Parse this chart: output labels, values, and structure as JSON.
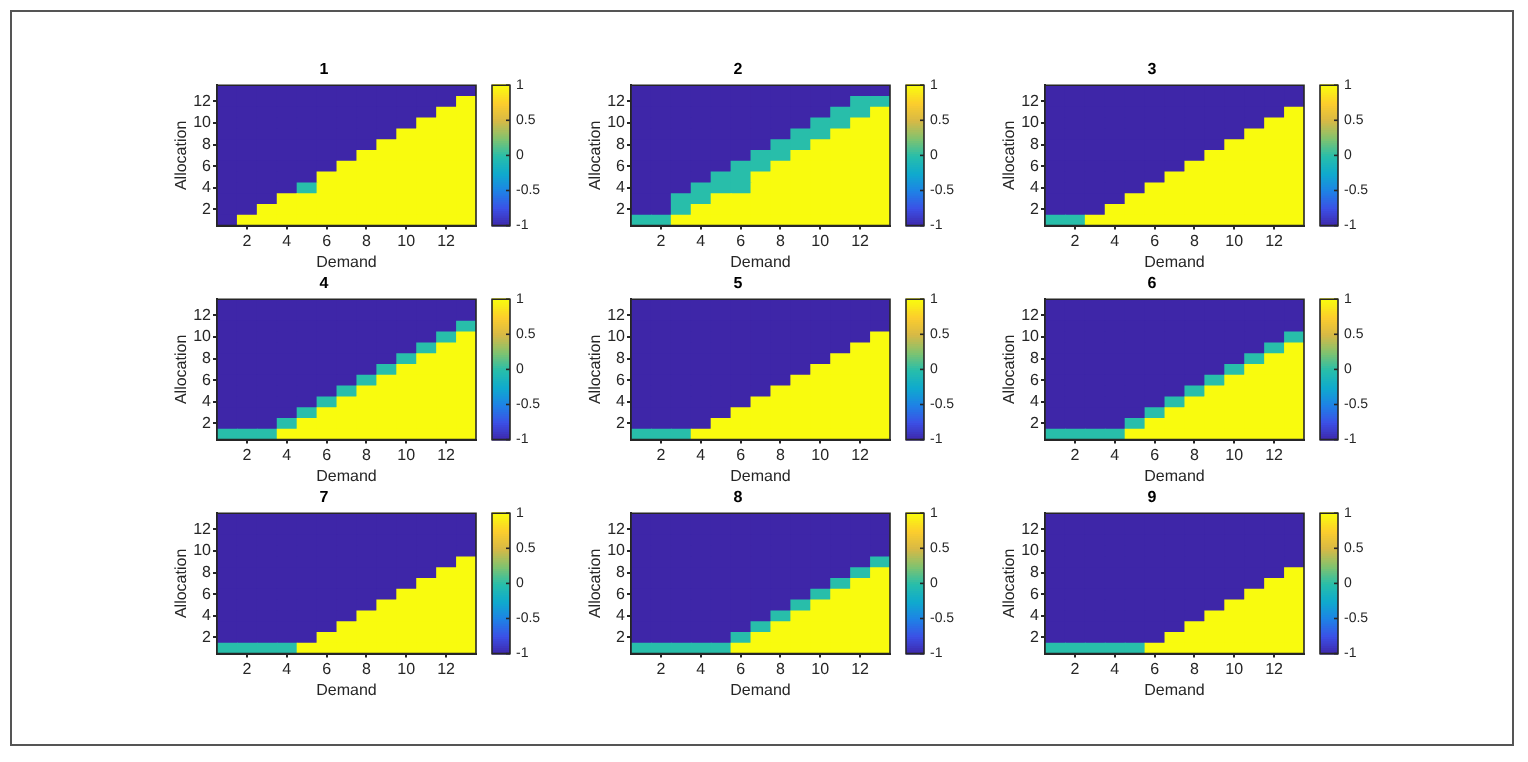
{
  "chart_data": [
    {
      "type": "heatmap",
      "title": "1",
      "xlabel": "Demand",
      "ylabel": "Allocation",
      "categories": [
        null,
        "2",
        null,
        "4",
        null,
        "6",
        null,
        "8",
        null,
        "10",
        null,
        "12",
        null
      ],
      "y_categories": [
        null,
        "12",
        null,
        "10",
        null,
        "8",
        null,
        "6",
        null,
        "4",
        null,
        "2",
        null
      ],
      "clim": [
        -1,
        1
      ],
      "cticks": [
        -1,
        -0.5,
        0,
        0.5,
        1
      ],
      "cells": [
        [
          -1,
          -1,
          -1,
          -1,
          -1,
          -1,
          -1,
          -1,
          -1,
          -1,
          -1,
          -1,
          -1
        ],
        [
          -1,
          -1,
          -1,
          -1,
          -1,
          -1,
          -1,
          -1,
          -1,
          -1,
          -1,
          -1,
          1
        ],
        [
          -1,
          -1,
          -1,
          -1,
          -1,
          -1,
          -1,
          -1,
          -1,
          -1,
          -1,
          1,
          1
        ],
        [
          -1,
          -1,
          -1,
          -1,
          -1,
          -1,
          -1,
          -1,
          -1,
          -1,
          1,
          1,
          1
        ],
        [
          -1,
          -1,
          -1,
          -1,
          -1,
          -1,
          -1,
          -1,
          -1,
          1,
          1,
          1,
          1
        ],
        [
          -1,
          -1,
          -1,
          -1,
          -1,
          -1,
          -1,
          -1,
          1,
          1,
          1,
          1,
          1
        ],
        [
          -1,
          -1,
          -1,
          -1,
          -1,
          -1,
          -1,
          1,
          1,
          1,
          1,
          1,
          1
        ],
        [
          -1,
          -1,
          -1,
          -1,
          -1,
          -1,
          1,
          1,
          1,
          1,
          1,
          1,
          1
        ],
        [
          -1,
          -1,
          -1,
          -1,
          -1,
          1,
          1,
          1,
          1,
          1,
          1,
          1,
          1
        ],
        [
          -1,
          -1,
          -1,
          -1,
          0,
          1,
          1,
          1,
          1,
          1,
          1,
          1,
          1
        ],
        [
          -1,
          -1,
          -1,
          1,
          1,
          1,
          1,
          1,
          1,
          1,
          1,
          1,
          1
        ],
        [
          -1,
          -1,
          1,
          1,
          1,
          1,
          1,
          1,
          1,
          1,
          1,
          1,
          1
        ],
        [
          -1,
          1,
          1,
          1,
          1,
          1,
          1,
          1,
          1,
          1,
          1,
          1,
          1
        ]
      ]
    },
    {
      "type": "heatmap",
      "title": "2",
      "xlabel": "Demand",
      "ylabel": "Allocation",
      "categories": [
        null,
        "2",
        null,
        "4",
        null,
        "6",
        null,
        "8",
        null,
        "10",
        null,
        "12",
        null
      ],
      "y_categories": [
        null,
        "12",
        null,
        "10",
        null,
        "8",
        null,
        "6",
        null,
        "4",
        null,
        "2",
        null
      ],
      "clim": [
        -1,
        1
      ],
      "cticks": [
        -1,
        -0.5,
        0,
        0.5,
        1
      ],
      "cells": [
        [
          -1,
          -1,
          -1,
          -1,
          -1,
          -1,
          -1,
          -1,
          -1,
          -1,
          -1,
          -1,
          -1
        ],
        [
          -1,
          -1,
          -1,
          -1,
          -1,
          -1,
          -1,
          -1,
          -1,
          -1,
          -1,
          0,
          0
        ],
        [
          -1,
          -1,
          -1,
          -1,
          -1,
          -1,
          -1,
          -1,
          -1,
          -1,
          0,
          0,
          1
        ],
        [
          -1,
          -1,
          -1,
          -1,
          -1,
          -1,
          -1,
          -1,
          -1,
          0,
          0,
          1,
          1
        ],
        [
          -1,
          -1,
          -1,
          -1,
          -1,
          -1,
          -1,
          -1,
          0,
          0,
          1,
          1,
          1
        ],
        [
          -1,
          -1,
          -1,
          -1,
          -1,
          -1,
          -1,
          0,
          0,
          1,
          1,
          1,
          1
        ],
        [
          -1,
          -1,
          -1,
          -1,
          -1,
          -1,
          0,
          0,
          1,
          1,
          1,
          1,
          1
        ],
        [
          -1,
          -1,
          -1,
          -1,
          -1,
          0,
          0,
          1,
          1,
          1,
          1,
          1,
          1
        ],
        [
          -1,
          -1,
          -1,
          -1,
          0,
          0,
          1,
          1,
          1,
          1,
          1,
          1,
          1
        ],
        [
          -1,
          -1,
          -1,
          0,
          0,
          0,
          1,
          1,
          1,
          1,
          1,
          1,
          1
        ],
        [
          -1,
          -1,
          0,
          0,
          1,
          1,
          1,
          1,
          1,
          1,
          1,
          1,
          1
        ],
        [
          -1,
          -1,
          0,
          1,
          1,
          1,
          1,
          1,
          1,
          1,
          1,
          1,
          1
        ],
        [
          0,
          0,
          1,
          1,
          1,
          1,
          1,
          1,
          1,
          1,
          1,
          1,
          1
        ]
      ]
    },
    {
      "type": "heatmap",
      "title": "3",
      "xlabel": "Demand",
      "ylabel": "Allocation",
      "categories": [
        null,
        "2",
        null,
        "4",
        null,
        "6",
        null,
        "8",
        null,
        "10",
        null,
        "12",
        null
      ],
      "y_categories": [
        null,
        "12",
        null,
        "10",
        null,
        "8",
        null,
        "6",
        null,
        "4",
        null,
        "2",
        null
      ],
      "clim": [
        -1,
        1
      ],
      "cticks": [
        -1,
        -0.5,
        0,
        0.5,
        1
      ],
      "cells": [
        [
          -1,
          -1,
          -1,
          -1,
          -1,
          -1,
          -1,
          -1,
          -1,
          -1,
          -1,
          -1,
          -1
        ],
        [
          -1,
          -1,
          -1,
          -1,
          -1,
          -1,
          -1,
          -1,
          -1,
          -1,
          -1,
          -1,
          -1
        ],
        [
          -1,
          -1,
          -1,
          -1,
          -1,
          -1,
          -1,
          -1,
          -1,
          -1,
          -1,
          -1,
          1
        ],
        [
          -1,
          -1,
          -1,
          -1,
          -1,
          -1,
          -1,
          -1,
          -1,
          -1,
          -1,
          1,
          1
        ],
        [
          -1,
          -1,
          -1,
          -1,
          -1,
          -1,
          -1,
          -1,
          -1,
          -1,
          1,
          1,
          1
        ],
        [
          -1,
          -1,
          -1,
          -1,
          -1,
          -1,
          -1,
          -1,
          -1,
          1,
          1,
          1,
          1
        ],
        [
          -1,
          -1,
          -1,
          -1,
          -1,
          -1,
          -1,
          -1,
          1,
          1,
          1,
          1,
          1
        ],
        [
          -1,
          -1,
          -1,
          -1,
          -1,
          -1,
          -1,
          1,
          1,
          1,
          1,
          1,
          1
        ],
        [
          -1,
          -1,
          -1,
          -1,
          -1,
          -1,
          1,
          1,
          1,
          1,
          1,
          1,
          1
        ],
        [
          -1,
          -1,
          -1,
          -1,
          -1,
          1,
          1,
          1,
          1,
          1,
          1,
          1,
          1
        ],
        [
          -1,
          -1,
          -1,
          -1,
          1,
          1,
          1,
          1,
          1,
          1,
          1,
          1,
          1
        ],
        [
          -1,
          -1,
          -1,
          1,
          1,
          1,
          1,
          1,
          1,
          1,
          1,
          1,
          1
        ],
        [
          0,
          0,
          1,
          1,
          1,
          1,
          1,
          1,
          1,
          1,
          1,
          1,
          1
        ]
      ]
    },
    {
      "type": "heatmap",
      "title": "4",
      "xlabel": "Demand",
      "ylabel": "Allocation",
      "categories": [
        null,
        "2",
        null,
        "4",
        null,
        "6",
        null,
        "8",
        null,
        "10",
        null,
        "12",
        null
      ],
      "y_categories": [
        null,
        "12",
        null,
        "10",
        null,
        "8",
        null,
        "6",
        null,
        "4",
        null,
        "2",
        null
      ],
      "clim": [
        -1,
        1
      ],
      "cticks": [
        -1,
        -0.5,
        0,
        0.5,
        1
      ],
      "cells": [
        [
          -1,
          -1,
          -1,
          -1,
          -1,
          -1,
          -1,
          -1,
          -1,
          -1,
          -1,
          -1,
          -1
        ],
        [
          -1,
          -1,
          -1,
          -1,
          -1,
          -1,
          -1,
          -1,
          -1,
          -1,
          -1,
          -1,
          -1
        ],
        [
          -1,
          -1,
          -1,
          -1,
          -1,
          -1,
          -1,
          -1,
          -1,
          -1,
          -1,
          -1,
          0
        ],
        [
          -1,
          -1,
          -1,
          -1,
          -1,
          -1,
          -1,
          -1,
          -1,
          -1,
          -1,
          0,
          1
        ],
        [
          -1,
          -1,
          -1,
          -1,
          -1,
          -1,
          -1,
          -1,
          -1,
          -1,
          0,
          1,
          1
        ],
        [
          -1,
          -1,
          -1,
          -1,
          -1,
          -1,
          -1,
          -1,
          -1,
          0,
          1,
          1,
          1
        ],
        [
          -1,
          -1,
          -1,
          -1,
          -1,
          -1,
          -1,
          -1,
          0,
          1,
          1,
          1,
          1
        ],
        [
          -1,
          -1,
          -1,
          -1,
          -1,
          -1,
          -1,
          0,
          1,
          1,
          1,
          1,
          1
        ],
        [
          -1,
          -1,
          -1,
          -1,
          -1,
          -1,
          0,
          1,
          1,
          1,
          1,
          1,
          1
        ],
        [
          -1,
          -1,
          -1,
          -1,
          -1,
          0,
          1,
          1,
          1,
          1,
          1,
          1,
          1
        ],
        [
          -1,
          -1,
          -1,
          -1,
          0,
          1,
          1,
          1,
          1,
          1,
          1,
          1,
          1
        ],
        [
          -1,
          -1,
          -1,
          0,
          1,
          1,
          1,
          1,
          1,
          1,
          1,
          1,
          1
        ],
        [
          0,
          0,
          0,
          1,
          1,
          1,
          1,
          1,
          1,
          1,
          1,
          1,
          1
        ]
      ]
    },
    {
      "type": "heatmap",
      "title": "5",
      "xlabel": "Demand",
      "ylabel": "Allocation",
      "categories": [
        null,
        "2",
        null,
        "4",
        null,
        "6",
        null,
        "8",
        null,
        "10",
        null,
        "12",
        null
      ],
      "y_categories": [
        null,
        "12",
        null,
        "10",
        null,
        "8",
        null,
        "6",
        null,
        "4",
        null,
        "2",
        null
      ],
      "clim": [
        -1,
        1
      ],
      "cticks": [
        -1,
        -0.5,
        0,
        0.5,
        1
      ],
      "cells": [
        [
          -1,
          -1,
          -1,
          -1,
          -1,
          -1,
          -1,
          -1,
          -1,
          -1,
          -1,
          -1,
          -1
        ],
        [
          -1,
          -1,
          -1,
          -1,
          -1,
          -1,
          -1,
          -1,
          -1,
          -1,
          -1,
          -1,
          -1
        ],
        [
          -1,
          -1,
          -1,
          -1,
          -1,
          -1,
          -1,
          -1,
          -1,
          -1,
          -1,
          -1,
          -1
        ],
        [
          -1,
          -1,
          -1,
          -1,
          -1,
          -1,
          -1,
          -1,
          -1,
          -1,
          -1,
          -1,
          1
        ],
        [
          -1,
          -1,
          -1,
          -1,
          -1,
          -1,
          -1,
          -1,
          -1,
          -1,
          -1,
          1,
          1
        ],
        [
          -1,
          -1,
          -1,
          -1,
          -1,
          -1,
          -1,
          -1,
          -1,
          -1,
          1,
          1,
          1
        ],
        [
          -1,
          -1,
          -1,
          -1,
          -1,
          -1,
          -1,
          -1,
          -1,
          1,
          1,
          1,
          1
        ],
        [
          -1,
          -1,
          -1,
          -1,
          -1,
          -1,
          -1,
          -1,
          1,
          1,
          1,
          1,
          1
        ],
        [
          -1,
          -1,
          -1,
          -1,
          -1,
          -1,
          -1,
          1,
          1,
          1,
          1,
          1,
          1
        ],
        [
          -1,
          -1,
          -1,
          -1,
          -1,
          -1,
          1,
          1,
          1,
          1,
          1,
          1,
          1
        ],
        [
          -1,
          -1,
          -1,
          -1,
          -1,
          1,
          1,
          1,
          1,
          1,
          1,
          1,
          1
        ],
        [
          -1,
          -1,
          -1,
          -1,
          1,
          1,
          1,
          1,
          1,
          1,
          1,
          1,
          1
        ],
        [
          0,
          0,
          0,
          1,
          1,
          1,
          1,
          1,
          1,
          1,
          1,
          1,
          1
        ]
      ]
    },
    {
      "type": "heatmap",
      "title": "6",
      "xlabel": "Demand",
      "ylabel": "Allocation",
      "categories": [
        null,
        "2",
        null,
        "4",
        null,
        "6",
        null,
        "8",
        null,
        "10",
        null,
        "12",
        null
      ],
      "y_categories": [
        null,
        "12",
        null,
        "10",
        null,
        "8",
        null,
        "6",
        null,
        "4",
        null,
        "2",
        null
      ],
      "clim": [
        -1,
        1
      ],
      "cticks": [
        -1,
        -0.5,
        0,
        0.5,
        1
      ],
      "cells": [
        [
          -1,
          -1,
          -1,
          -1,
          -1,
          -1,
          -1,
          -1,
          -1,
          -1,
          -1,
          -1,
          -1
        ],
        [
          -1,
          -1,
          -1,
          -1,
          -1,
          -1,
          -1,
          -1,
          -1,
          -1,
          -1,
          -1,
          -1
        ],
        [
          -1,
          -1,
          -1,
          -1,
          -1,
          -1,
          -1,
          -1,
          -1,
          -1,
          -1,
          -1,
          -1
        ],
        [
          -1,
          -1,
          -1,
          -1,
          -1,
          -1,
          -1,
          -1,
          -1,
          -1,
          -1,
          -1,
          0
        ],
        [
          -1,
          -1,
          -1,
          -1,
          -1,
          -1,
          -1,
          -1,
          -1,
          -1,
          -1,
          0,
          1
        ],
        [
          -1,
          -1,
          -1,
          -1,
          -1,
          -1,
          -1,
          -1,
          -1,
          -1,
          0,
          1,
          1
        ],
        [
          -1,
          -1,
          -1,
          -1,
          -1,
          -1,
          -1,
          -1,
          -1,
          0,
          1,
          1,
          1
        ],
        [
          -1,
          -1,
          -1,
          -1,
          -1,
          -1,
          -1,
          -1,
          0,
          1,
          1,
          1,
          1
        ],
        [
          -1,
          -1,
          -1,
          -1,
          -1,
          -1,
          -1,
          0,
          1,
          1,
          1,
          1,
          1
        ],
        [
          -1,
          -1,
          -1,
          -1,
          -1,
          -1,
          0,
          1,
          1,
          1,
          1,
          1,
          1
        ],
        [
          -1,
          -1,
          -1,
          -1,
          -1,
          0,
          1,
          1,
          1,
          1,
          1,
          1,
          1
        ],
        [
          -1,
          -1,
          -1,
          -1,
          0,
          1,
          1,
          1,
          1,
          1,
          1,
          1,
          1
        ],
        [
          0,
          0,
          0,
          0,
          1,
          1,
          1,
          1,
          1,
          1,
          1,
          1,
          1
        ]
      ]
    },
    {
      "type": "heatmap",
      "title": "7",
      "xlabel": "Demand",
      "ylabel": "Allocation",
      "categories": [
        null,
        "2",
        null,
        "4",
        null,
        "6",
        null,
        "8",
        null,
        "10",
        null,
        "12",
        null
      ],
      "y_categories": [
        null,
        "12",
        null,
        "10",
        null,
        "8",
        null,
        "6",
        null,
        "4",
        null,
        "2",
        null
      ],
      "clim": [
        -1,
        1
      ],
      "cticks": [
        -1,
        -0.5,
        0,
        0.5,
        1
      ],
      "cells": [
        [
          -1,
          -1,
          -1,
          -1,
          -1,
          -1,
          -1,
          -1,
          -1,
          -1,
          -1,
          -1,
          -1
        ],
        [
          -1,
          -1,
          -1,
          -1,
          -1,
          -1,
          -1,
          -1,
          -1,
          -1,
          -1,
          -1,
          -1
        ],
        [
          -1,
          -1,
          -1,
          -1,
          -1,
          -1,
          -1,
          -1,
          -1,
          -1,
          -1,
          -1,
          -1
        ],
        [
          -1,
          -1,
          -1,
          -1,
          -1,
          -1,
          -1,
          -1,
          -1,
          -1,
          -1,
          -1,
          -1
        ],
        [
          -1,
          -1,
          -1,
          -1,
          -1,
          -1,
          -1,
          -1,
          -1,
          -1,
          -1,
          -1,
          1
        ],
        [
          -1,
          -1,
          -1,
          -1,
          -1,
          -1,
          -1,
          -1,
          -1,
          -1,
          -1,
          1,
          1
        ],
        [
          -1,
          -1,
          -1,
          -1,
          -1,
          -1,
          -1,
          -1,
          -1,
          -1,
          1,
          1,
          1
        ],
        [
          -1,
          -1,
          -1,
          -1,
          -1,
          -1,
          -1,
          -1,
          -1,
          1,
          1,
          1,
          1
        ],
        [
          -1,
          -1,
          -1,
          -1,
          -1,
          -1,
          -1,
          -1,
          1,
          1,
          1,
          1,
          1
        ],
        [
          -1,
          -1,
          -1,
          -1,
          -1,
          -1,
          -1,
          1,
          1,
          1,
          1,
          1,
          1
        ],
        [
          -1,
          -1,
          -1,
          -1,
          -1,
          -1,
          1,
          1,
          1,
          1,
          1,
          1,
          1
        ],
        [
          -1,
          -1,
          -1,
          -1,
          -1,
          1,
          1,
          1,
          1,
          1,
          1,
          1,
          1
        ],
        [
          0,
          0,
          0,
          0,
          1,
          1,
          1,
          1,
          1,
          1,
          1,
          1,
          1
        ]
      ]
    },
    {
      "type": "heatmap",
      "title": "8",
      "xlabel": "Demand",
      "ylabel": "Allocation",
      "categories": [
        null,
        "2",
        null,
        "4",
        null,
        "6",
        null,
        "8",
        null,
        "10",
        null,
        "12",
        null
      ],
      "y_categories": [
        null,
        "12",
        null,
        "10",
        null,
        "8",
        null,
        "6",
        null,
        "4",
        null,
        "2",
        null
      ],
      "clim": [
        -1,
        1
      ],
      "cticks": [
        -1,
        -0.5,
        0,
        0.5,
        1
      ],
      "cells": [
        [
          -1,
          -1,
          -1,
          -1,
          -1,
          -1,
          -1,
          -1,
          -1,
          -1,
          -1,
          -1,
          -1
        ],
        [
          -1,
          -1,
          -1,
          -1,
          -1,
          -1,
          -1,
          -1,
          -1,
          -1,
          -1,
          -1,
          -1
        ],
        [
          -1,
          -1,
          -1,
          -1,
          -1,
          -1,
          -1,
          -1,
          -1,
          -1,
          -1,
          -1,
          -1
        ],
        [
          -1,
          -1,
          -1,
          -1,
          -1,
          -1,
          -1,
          -1,
          -1,
          -1,
          -1,
          -1,
          -1
        ],
        [
          -1,
          -1,
          -1,
          -1,
          -1,
          -1,
          -1,
          -1,
          -1,
          -1,
          -1,
          -1,
          0
        ],
        [
          -1,
          -1,
          -1,
          -1,
          -1,
          -1,
          -1,
          -1,
          -1,
          -1,
          -1,
          0,
          1
        ],
        [
          -1,
          -1,
          -1,
          -1,
          -1,
          -1,
          -1,
          -1,
          -1,
          -1,
          0,
          1,
          1
        ],
        [
          -1,
          -1,
          -1,
          -1,
          -1,
          -1,
          -1,
          -1,
          -1,
          0,
          1,
          1,
          1
        ],
        [
          -1,
          -1,
          -1,
          -1,
          -1,
          -1,
          -1,
          -1,
          0,
          1,
          1,
          1,
          1
        ],
        [
          -1,
          -1,
          -1,
          -1,
          -1,
          -1,
          -1,
          0,
          1,
          1,
          1,
          1,
          1
        ],
        [
          -1,
          -1,
          -1,
          -1,
          -1,
          -1,
          0,
          1,
          1,
          1,
          1,
          1,
          1
        ],
        [
          -1,
          -1,
          -1,
          -1,
          -1,
          0,
          1,
          1,
          1,
          1,
          1,
          1,
          1
        ],
        [
          0,
          0,
          0,
          0,
          0,
          1,
          1,
          1,
          1,
          1,
          1,
          1,
          1
        ]
      ]
    },
    {
      "type": "heatmap",
      "title": "9",
      "xlabel": "Demand",
      "ylabel": "Allocation",
      "categories": [
        null,
        "2",
        null,
        "4",
        null,
        "6",
        null,
        "8",
        null,
        "10",
        null,
        "12",
        null
      ],
      "y_categories": [
        null,
        "12",
        null,
        "10",
        null,
        "8",
        null,
        "6",
        null,
        "4",
        null,
        "2",
        null
      ],
      "clim": [
        -1,
        1
      ],
      "cticks": [
        -1,
        -0.5,
        0,
        0.5,
        1
      ],
      "cells": [
        [
          -1,
          -1,
          -1,
          -1,
          -1,
          -1,
          -1,
          -1,
          -1,
          -1,
          -1,
          -1,
          -1
        ],
        [
          -1,
          -1,
          -1,
          -1,
          -1,
          -1,
          -1,
          -1,
          -1,
          -1,
          -1,
          -1,
          -1
        ],
        [
          -1,
          -1,
          -1,
          -1,
          -1,
          -1,
          -1,
          -1,
          -1,
          -1,
          -1,
          -1,
          -1
        ],
        [
          -1,
          -1,
          -1,
          -1,
          -1,
          -1,
          -1,
          -1,
          -1,
          -1,
          -1,
          -1,
          -1
        ],
        [
          -1,
          -1,
          -1,
          -1,
          -1,
          -1,
          -1,
          -1,
          -1,
          -1,
          -1,
          -1,
          -1
        ],
        [
          -1,
          -1,
          -1,
          -1,
          -1,
          -1,
          -1,
          -1,
          -1,
          -1,
          -1,
          -1,
          1
        ],
        [
          -1,
          -1,
          -1,
          -1,
          -1,
          -1,
          -1,
          -1,
          -1,
          -1,
          -1,
          1,
          1
        ],
        [
          -1,
          -1,
          -1,
          -1,
          -1,
          -1,
          -1,
          -1,
          -1,
          -1,
          1,
          1,
          1
        ],
        [
          -1,
          -1,
          -1,
          -1,
          -1,
          -1,
          -1,
          -1,
          -1,
          1,
          1,
          1,
          1
        ],
        [
          -1,
          -1,
          -1,
          -1,
          -1,
          -1,
          -1,
          -1,
          1,
          1,
          1,
          1,
          1
        ],
        [
          -1,
          -1,
          -1,
          -1,
          -1,
          -1,
          -1,
          1,
          1,
          1,
          1,
          1,
          1
        ],
        [
          -1,
          -1,
          -1,
          -1,
          -1,
          -1,
          1,
          1,
          1,
          1,
          1,
          1,
          1
        ],
        [
          0,
          0,
          0,
          0,
          0,
          1,
          1,
          1,
          1,
          1,
          1,
          1,
          1
        ]
      ]
    }
  ]
}
